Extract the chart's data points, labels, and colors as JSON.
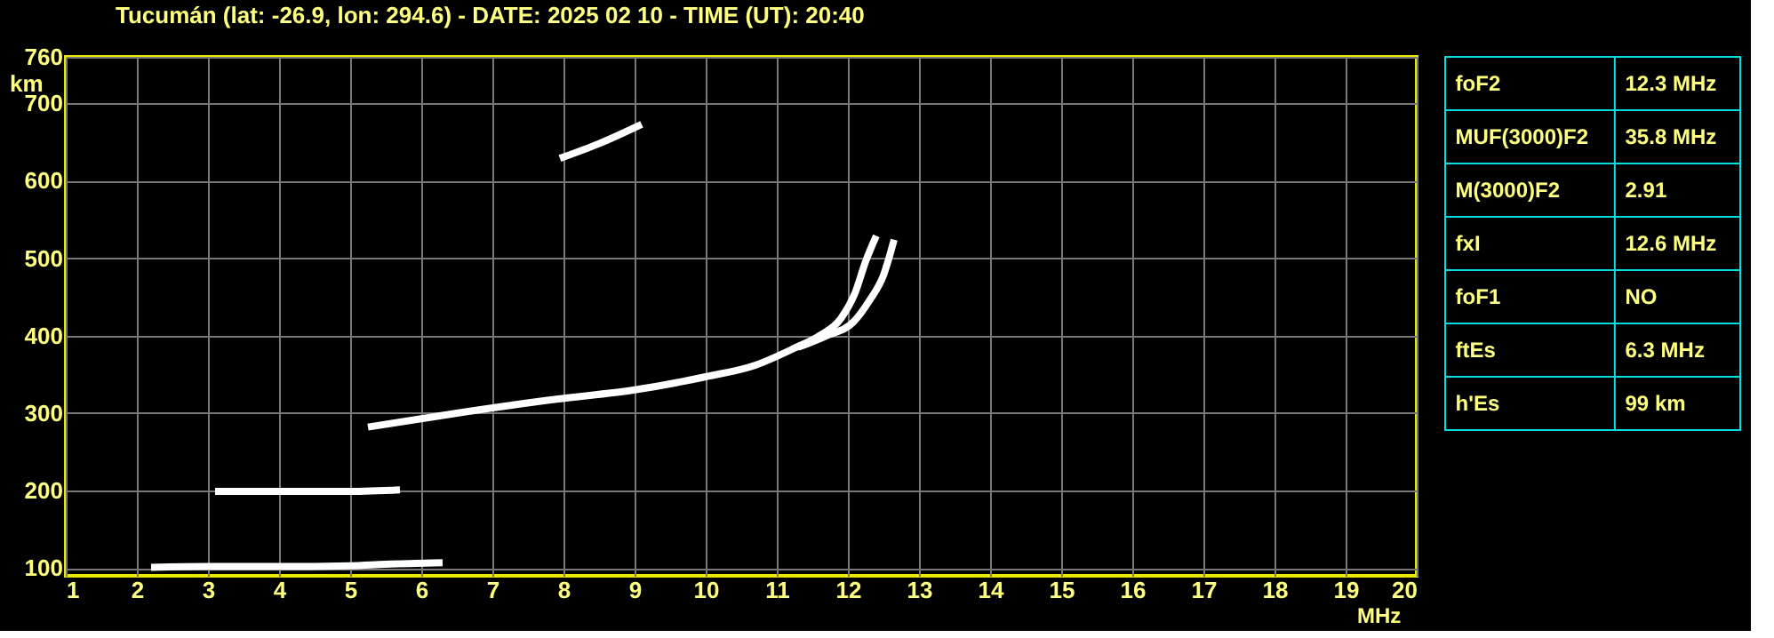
{
  "chart_data": [
    {
      "type": "line",
      "title": "Tucumán (lat: -26.9, lon: 294.6) - DATE: 2025 02 10 - TIME (UT): 20:40",
      "xlabel": "MHz",
      "ylabel": "km",
      "xlim": [
        1,
        20
      ],
      "ylim": [
        90,
        760
      ],
      "xticks": [
        1,
        2,
        3,
        4,
        5,
        6,
        7,
        8,
        9,
        10,
        11,
        12,
        13,
        14,
        15,
        16,
        17,
        18,
        19,
        20
      ],
      "yticks": [
        100,
        200,
        300,
        400,
        500,
        600,
        700,
        760
      ],
      "grid": true,
      "marker": "none",
      "line_style": "solid",
      "series": [
        {
          "color": "#ffffff",
          "x": [
            5.25,
            6.5,
            7.9,
            9.0,
            10.0,
            10.7,
            11.25,
            11.6,
            11.9,
            12.1,
            12.25,
            12.4
          ],
          "values": [
            282,
            300,
            318,
            330,
            347,
            362,
            384,
            400,
            422,
            455,
            496,
            529
          ]
        },
        {
          "color": "#ffffff",
          "x": [
            11.3,
            11.7,
            12.08,
            12.3,
            12.5,
            12.65
          ],
          "values": [
            385,
            400,
            418,
            445,
            478,
            524
          ]
        },
        {
          "color": "#ffffff",
          "x": [
            2.2,
            3.0,
            4.0,
            5.0,
            5.5,
            6.3
          ],
          "values": [
            101,
            102,
            102,
            103,
            105,
            107
          ]
        },
        {
          "color": "#ffffff",
          "x": [
            3.1,
            4.0,
            4.5,
            5.0,
            5.7
          ],
          "values": [
            199,
            199,
            199,
            199,
            201
          ]
        },
        {
          "color": "#ffffff",
          "x": [
            7.95,
            8.5,
            9.1
          ],
          "values": [
            629,
            648,
            673
          ]
        }
      ]
    },
    {
      "type": "other",
      "annotations": [
        "foF2",
        "12.3 MHz",
        "MUF(3000)F2",
        "35.8 MHz",
        "M(3000)F2",
        "2.91",
        "fxI",
        "12.6 MHz",
        "foF1",
        "NO",
        "ftEs",
        "6.3 MHz",
        "h'Es",
        "99 km"
      ]
    }
  ]
}
